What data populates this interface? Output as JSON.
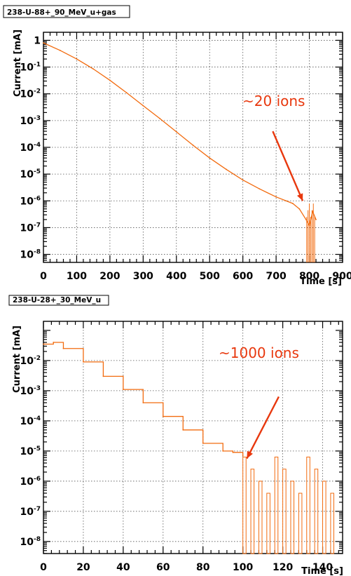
{
  "chart_data": [
    {
      "type": "line",
      "title": "238-U-88+_90_MeV_u+gas",
      "xlabel": "Time [s]",
      "ylabel": "Current [mA]",
      "xlim": [
        0,
        900
      ],
      "ylim_log10": [
        -8.3,
        0.3
      ],
      "yscale": "log",
      "grid": true,
      "xticks": [
        0,
        100,
        200,
        300,
        400,
        500,
        600,
        700,
        800,
        900
      ],
      "xtick_labels": [
        "0",
        "100",
        "200",
        "300",
        "400",
        "500",
        "600",
        "700",
        "800",
        "900"
      ],
      "yticks": [
        {
          "exp": 0,
          "label": "1",
          "sup": ""
        },
        {
          "exp": -1,
          "label": "10",
          "sup": "-1"
        },
        {
          "exp": -2,
          "label": "10",
          "sup": "-2"
        },
        {
          "exp": -3,
          "label": "10",
          "sup": "-3"
        },
        {
          "exp": -4,
          "label": "10",
          "sup": "-4"
        },
        {
          "exp": -5,
          "label": "10",
          "sup": "-5"
        },
        {
          "exp": -6,
          "label": "10",
          "sup": "-6"
        },
        {
          "exp": -7,
          "label": "10",
          "sup": "-7"
        },
        {
          "exp": -8,
          "label": "10",
          "sup": "-8"
        }
      ],
      "series": [
        {
          "color": "#f26b0f",
          "x": [
            0,
            50,
            100,
            150,
            200,
            250,
            300,
            350,
            400,
            450,
            500,
            550,
            600,
            650,
            700,
            730,
            750,
            770,
            790,
            800,
            810,
            820
          ],
          "y": [
            0.8,
            0.42,
            0.2,
            0.085,
            0.032,
            0.011,
            0.0036,
            0.0012,
            0.00038,
            0.00012,
            4e-05,
            1.5e-05,
            6e-06,
            2.8e-06,
            1.4e-06,
            1e-06,
            8e-07,
            5e-07,
            2e-07,
            1.2e-07,
            4e-07,
            2e-07
          ]
        }
      ],
      "annotation": {
        "text": "~20 ions",
        "arrow_from": [
          690,
          -3.4
        ],
        "arrow_to": [
          780,
          -6.0
        ],
        "color": "#e8380e"
      }
    },
    {
      "type": "line",
      "title": "238-U-28+_30_MeV_u",
      "xlabel": "Time [s]",
      "ylabel": "Current [mA]",
      "xlim": [
        0,
        150
      ],
      "ylim_log10": [
        -8.4,
        -0.7
      ],
      "yscale": "log",
      "grid": true,
      "xticks": [
        0,
        20,
        40,
        60,
        80,
        100,
        120,
        140
      ],
      "xtick_labels": [
        "0",
        "20",
        "40",
        "60",
        "80",
        "100",
        "120",
        "140"
      ],
      "yticks": [
        {
          "exp": -2,
          "label": "10",
          "sup": "-2"
        },
        {
          "exp": -3,
          "label": "10",
          "sup": "-3"
        },
        {
          "exp": -4,
          "label": "10",
          "sup": "-4"
        },
        {
          "exp": -5,
          "label": "10",
          "sup": "-5"
        },
        {
          "exp": -6,
          "label": "10",
          "sup": "-6"
        },
        {
          "exp": -7,
          "label": "10",
          "sup": "-7"
        },
        {
          "exp": -8,
          "label": "10",
          "sup": "-8"
        }
      ],
      "series": [
        {
          "color": "#f26b0f",
          "x": [
            0,
            5,
            10,
            20,
            30,
            40,
            50,
            60,
            70,
            80,
            90,
            95,
            100
          ],
          "y": [
            0.035,
            0.04,
            0.025,
            0.009,
            0.003,
            0.0011,
            0.0004,
            0.00014,
            5e-05,
            1.8e-05,
            1e-05,
            9e-06,
            7e-06
          ]
        }
      ],
      "annotation": {
        "text": "~1000 ions",
        "arrow_from": [
          118,
          -3.2
        ],
        "arrow_to": [
          102,
          -5.25
        ],
        "color": "#e8380e"
      }
    }
  ]
}
